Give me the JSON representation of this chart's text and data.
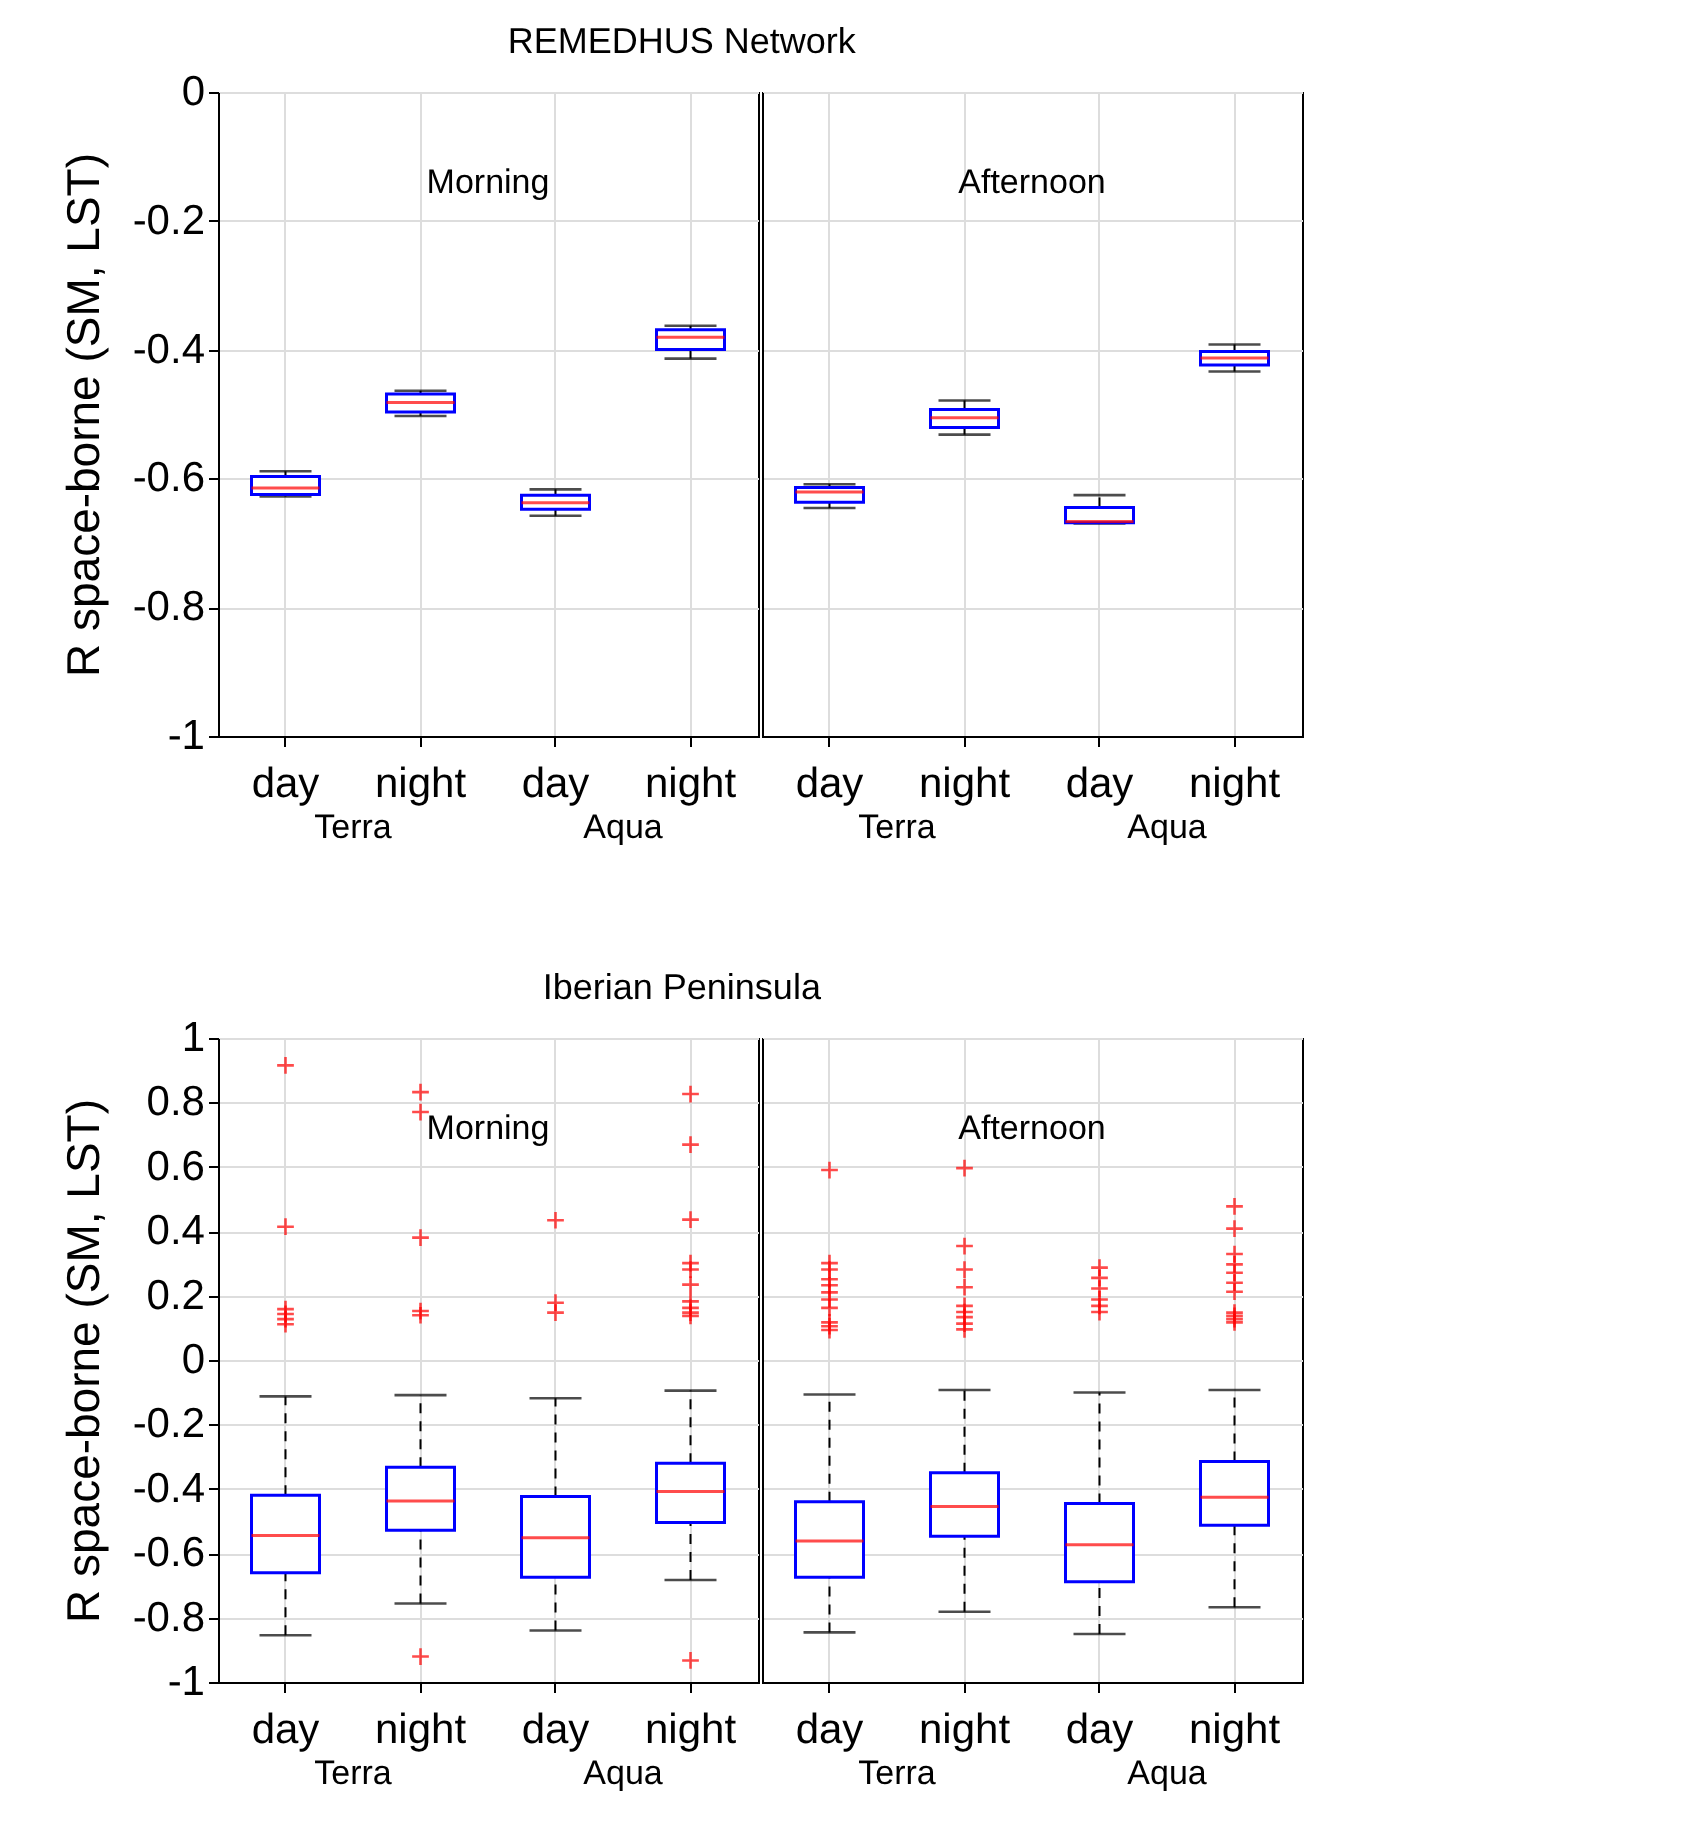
{
  "chart_data": [
    {
      "type": "box",
      "title": "REMEDHUS Network",
      "ylabel": "R space-borne (SM, LST)",
      "categories": [
        "day",
        "night",
        "day",
        "night"
      ],
      "ylim": [
        -1,
        0
      ],
      "yticks": [
        -1,
        -0.8,
        -0.6,
        -0.4,
        -0.2,
        0
      ],
      "color": "#0000ff",
      "grid": true,
      "marker": "cross",
      "line_style": "dashed",
      "boxes": [
        {
          "low": -0.628,
          "q1": -0.625,
          "median": -0.615,
          "q3": -0.597,
          "high": -0.589
        },
        {
          "low": -0.503,
          "q1": -0.497,
          "median": -0.482,
          "q3": -0.469,
          "high": -0.464
        },
        {
          "low": -0.658,
          "q1": -0.648,
          "median": -0.638,
          "q3": -0.626,
          "high": -0.617
        },
        {
          "low": -0.414,
          "q1": -0.4,
          "median": -0.381,
          "q3": -0.369,
          "high": -0.363
        }
      ],
      "annotations": [
        "Morning",
        "Terra",
        "Aqua"
      ]
    },
    {
      "type": "box",
      "tick_labels": "x",
      "categories": [
        "day",
        "night",
        "day",
        "night"
      ],
      "ylim": [
        -1,
        0
      ],
      "yticks": [
        -1,
        -0.8,
        -0.6,
        -0.4,
        -0.2,
        0
      ],
      "color": "#0000ff",
      "grid": true,
      "marker": "cross",
      "line_style": "dashed",
      "boxes": [
        {
          "low": -0.646,
          "q1": -0.637,
          "median": -0.621,
          "q3": -0.614,
          "high": -0.609
        },
        {
          "low": -0.532,
          "q1": -0.521,
          "median": -0.506,
          "q3": -0.493,
          "high": -0.479
        },
        {
          "low": -0.67,
          "q1": -0.669,
          "median": -0.667,
          "q3": -0.645,
          "high": -0.626
        },
        {
          "low": -0.434,
          "q1": -0.424,
          "median": -0.413,
          "q3": -0.403,
          "high": -0.392
        }
      ],
      "annotations": [
        "Afternoon",
        "Terra",
        "Aqua"
      ]
    },
    {
      "type": "box",
      "title": "Iberian Peninsula",
      "ylabel": "R space-borne (SM, LST)",
      "categories": [
        "day",
        "night",
        "day",
        "night"
      ],
      "ylim": [
        -1,
        1
      ],
      "yticks": [
        -1,
        -0.8,
        -0.6,
        -0.4,
        -0.2,
        0,
        0.2,
        0.4,
        0.6,
        0.8,
        1
      ],
      "color": "#0000ff",
      "grid": true,
      "marker": "cross",
      "line_style": "dashed",
      "boxes": [
        {
          "low": -0.855,
          "q1": -0.661,
          "median": -0.545,
          "q3": -0.42,
          "high": -0.113,
          "outliers": [
            0.915,
            0.414,
            0.158,
            0.143,
            0.127,
            0.111
          ]
        },
        {
          "low": -0.756,
          "q1": -0.529,
          "median": -0.438,
          "q3": -0.333,
          "high": -0.109,
          "outliers": [
            0.832,
            0.77,
            0.38,
            0.152,
            0.139,
            -0.921
          ]
        },
        {
          "low": -0.84,
          "q1": -0.675,
          "median": -0.552,
          "q3": -0.424,
          "high": -0.119,
          "outliers": [
            0.434,
            0.178,
            0.147
          ]
        },
        {
          "low": -0.683,
          "q1": -0.505,
          "median": -0.408,
          "q3": -0.321,
          "high": -0.095,
          "outliers": [
            0.826,
            0.669,
            0.436,
            0.301,
            0.281,
            0.234,
            0.182,
            0.162,
            0.147,
            0.137,
            -0.933
          ]
        }
      ],
      "annotations": [
        "Morning",
        "Terra",
        "Aqua"
      ]
    },
    {
      "type": "box",
      "tick_labels": "x",
      "categories": [
        "day",
        "night",
        "day",
        "night"
      ],
      "ylim": [
        -1,
        1
      ],
      "yticks": [
        -1,
        -0.8,
        -0.6,
        -0.4,
        -0.2,
        0,
        0.2,
        0.4,
        0.6,
        0.8,
        1
      ],
      "color": "#0000ff",
      "grid": true,
      "marker": "cross",
      "line_style": "dashed",
      "boxes": [
        {
          "low": -0.846,
          "q1": -0.675,
          "median": -0.562,
          "q3": -0.44,
          "high": -0.107,
          "outliers": [
            0.59,
            0.301,
            0.281,
            0.251,
            0.232,
            0.21,
            0.188,
            0.162,
            0.117,
            0.105,
            0.093
          ]
        },
        {
          "low": -0.782,
          "q1": -0.547,
          "median": -0.455,
          "q3": -0.35,
          "high": -0.093,
          "outliers": [
            0.596,
            0.354,
            0.281,
            0.226,
            0.168,
            0.149,
            0.133,
            0.113,
            0.095
          ]
        },
        {
          "low": -0.851,
          "q1": -0.689,
          "median": -0.574,
          "q3": -0.446,
          "high": -0.101,
          "outliers": [
            0.287,
            0.255,
            0.222,
            0.188,
            0.168,
            0.149
          ]
        },
        {
          "low": -0.768,
          "q1": -0.513,
          "median": -0.426,
          "q3": -0.315,
          "high": -0.093,
          "outliers": [
            0.477,
            0.408,
            0.329,
            0.297,
            0.271,
            0.24,
            0.212,
            0.147,
            0.137,
            0.127,
            0.117
          ]
        }
      ],
      "annotations": [
        "Afternoon",
        "Terra",
        "Aqua"
      ]
    }
  ]
}
